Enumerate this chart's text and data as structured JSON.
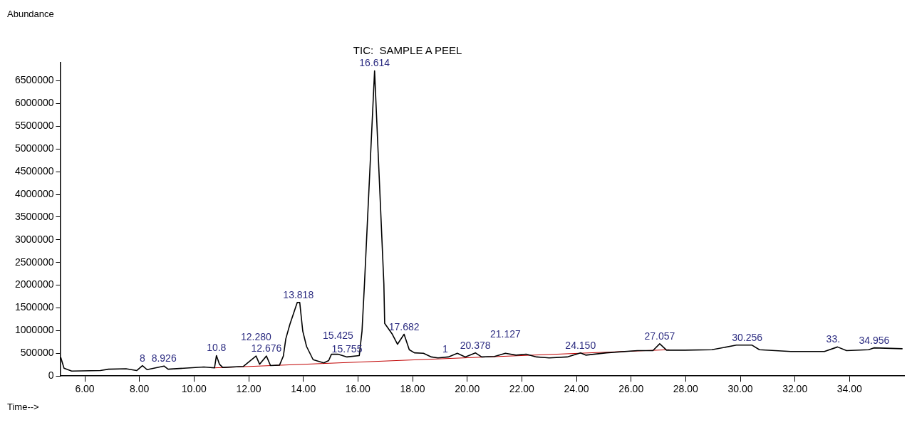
{
  "chart_data": {
    "type": "line",
    "title": "TIC:  SAMPLE A PEEL",
    "ylabel": "Abundance",
    "xlabel": "Time-->",
    "xlim": [
      5.1,
      36
    ],
    "ylim": [
      0,
      6900000
    ],
    "xticks": [
      {
        "value": 6,
        "label": "6.00"
      },
      {
        "value": 8,
        "label": "8.00"
      },
      {
        "value": 10,
        "label": "10.00"
      },
      {
        "value": 12,
        "label": "12.00"
      },
      {
        "value": 14,
        "label": "14.00"
      },
      {
        "value": 16,
        "label": "16.00"
      },
      {
        "value": 18,
        "label": "18.00"
      },
      {
        "value": 20,
        "label": "20.00"
      },
      {
        "value": 22,
        "label": "22.00"
      },
      {
        "value": 24,
        "label": "24.00"
      },
      {
        "value": 26,
        "label": "26.00"
      },
      {
        "value": 28,
        "label": "28.00"
      },
      {
        "value": 30,
        "label": "30.00"
      },
      {
        "value": 32,
        "label": "32.00"
      },
      {
        "value": 34,
        "label": "34.00"
      }
    ],
    "yticks": [
      0,
      500000,
      1000000,
      1500000,
      2000000,
      2500000,
      3000000,
      3500000,
      4000000,
      4500000,
      5000000,
      5500000,
      6000000,
      6500000
    ],
    "grid": false,
    "legend": false,
    "marker": "none",
    "line_style": "solid",
    "series": [
      {
        "color": "#000000",
        "x": [
          5.12,
          5.24,
          5.52,
          6.57,
          6.86,
          7.51,
          7.9,
          8.11,
          8.28,
          8.9,
          9.05,
          10.36,
          10.75,
          10.82,
          10.93,
          11.05,
          11.8,
          12.27,
          12.4,
          12.65,
          12.8,
          13.13,
          13.27,
          13.36,
          13.51,
          13.78,
          13.87,
          13.98,
          14.12,
          14.36,
          14.75,
          14.93,
          15.03,
          15.27,
          15.6,
          16.05,
          16.15,
          16.24,
          16.61,
          16.95,
          16.98,
          17.26,
          17.45,
          17.69,
          17.88,
          18.07,
          18.4,
          18.69,
          18.93,
          19.31,
          19.64,
          19.93,
          20.3,
          20.53,
          21.0,
          21.4,
          21.79,
          22.16,
          22.54,
          23.0,
          23.66,
          24.15,
          24.34,
          25.1,
          26.24,
          26.8,
          27.05,
          27.3,
          27.97,
          28.96,
          29.86,
          30.43,
          30.7,
          31.85,
          33.08,
          33.56,
          33.89,
          34.7,
          34.89,
          35.94
        ],
        "values": [
          410000,
          170000,
          110000,
          120000,
          150000,
          160000,
          120000,
          230000,
          140000,
          220000,
          150000,
          200000,
          180000,
          450000,
          260000,
          190000,
          210000,
          440000,
          260000,
          440000,
          230000,
          240000,
          440000,
          820000,
          1140000,
          1620000,
          1620000,
          990000,
          650000,
          360000,
          290000,
          340000,
          480000,
          480000,
          420000,
          450000,
          990000,
          2030000,
          6720000,
          2030000,
          1160000,
          920000,
          700000,
          920000,
          580000,
          510000,
          500000,
          420000,
          400000,
          420000,
          500000,
          420000,
          510000,
          420000,
          430000,
          500000,
          460000,
          480000,
          420000,
          400000,
          420000,
          510000,
          460000,
          510000,
          560000,
          560000,
          710000,
          570000,
          570000,
          580000,
          680000,
          680000,
          580000,
          540000,
          540000,
          640000,
          560000,
          580000,
          620000,
          600000
        ]
      },
      {
        "color": "#c00000",
        "x": [
          10.75,
          27.4
        ],
        "values": [
          180000,
          580000
        ]
      }
    ],
    "annotations": [
      {
        "text": "8",
        "x": 8.11,
        "y": 230000
      },
      {
        "text": "8.926",
        "x": 8.9,
        "y": 225000
      },
      {
        "text": "10.8",
        "x": 10.82,
        "y": 450000
      },
      {
        "text": "12.676",
        "x": 12.65,
        "y": 440000
      },
      {
        "text": "12.280",
        "x": 12.27,
        "y": 440000
      },
      {
        "text": "13.818",
        "x": 13.82,
        "y": 1620000
      },
      {
        "text": "15.755",
        "x": 15.6,
        "y": 420000
      },
      {
        "text": "15.425",
        "x": 15.27,
        "y": 480000
      },
      {
        "text": "16.614",
        "x": 16.61,
        "y": 6720000
      },
      {
        "text": "17.682",
        "x": 17.69,
        "y": 920000
      },
      {
        "text": "1",
        "x": 19.2,
        "y": 420000
      },
      {
        "text": "20.378",
        "x": 20.3,
        "y": 510000
      },
      {
        "text": "21.127",
        "x": 21.4,
        "y": 500000
      },
      {
        "text": "24.150",
        "x": 24.15,
        "y": 510000
      },
      {
        "text": "27.057",
        "x": 27.05,
        "y": 710000
      },
      {
        "text": "30.256",
        "x": 30.25,
        "y": 675000
      },
      {
        "text": "33.",
        "x": 33.4,
        "y": 640000
      },
      {
        "text": "34.956",
        "x": 34.9,
        "y": 615000
      }
    ]
  }
}
